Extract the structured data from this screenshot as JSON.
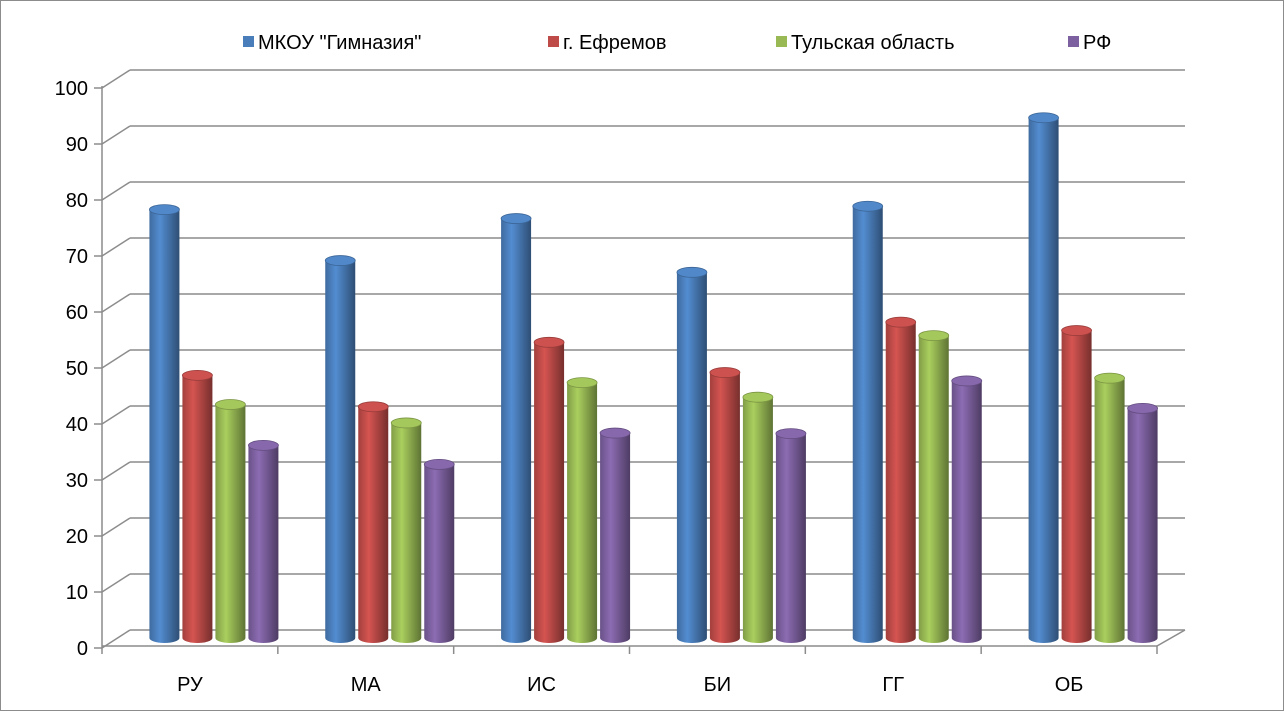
{
  "chart_data": {
    "type": "bar",
    "style": "3d-clustered-cylinder",
    "categories": [
      "РУ",
      "МА",
      "ИС",
      "БИ",
      "ГГ",
      "ОБ"
    ],
    "series": [
      {
        "name": "МКОУ \"Гимназия\"",
        "color": "#4a7ebb",
        "values": [
          76.5,
          67.4,
          74.9,
          65.3,
          77.1,
          92.9
        ]
      },
      {
        "name": "г. Ефремов",
        "color": "#be4b48",
        "values": [
          46.9,
          41.3,
          52.8,
          47.4,
          56.4,
          54.9
        ]
      },
      {
        "name": "Тульская область",
        "color": "#98b954",
        "values": [
          41.7,
          38.4,
          45.6,
          43.0,
          54.0,
          46.4
        ]
      },
      {
        "name": "РФ",
        "color": "#7d60a0",
        "values": [
          34.4,
          31.0,
          36.6,
          36.5,
          45.9,
          41.0
        ]
      }
    ],
    "y_ticks": [
      "0",
      "10",
      "20",
      "30",
      "40",
      "50",
      "60",
      "70",
      "80",
      "90",
      "100"
    ],
    "ylim": [
      0,
      100
    ],
    "grid": true,
    "legend_position": "top"
  }
}
